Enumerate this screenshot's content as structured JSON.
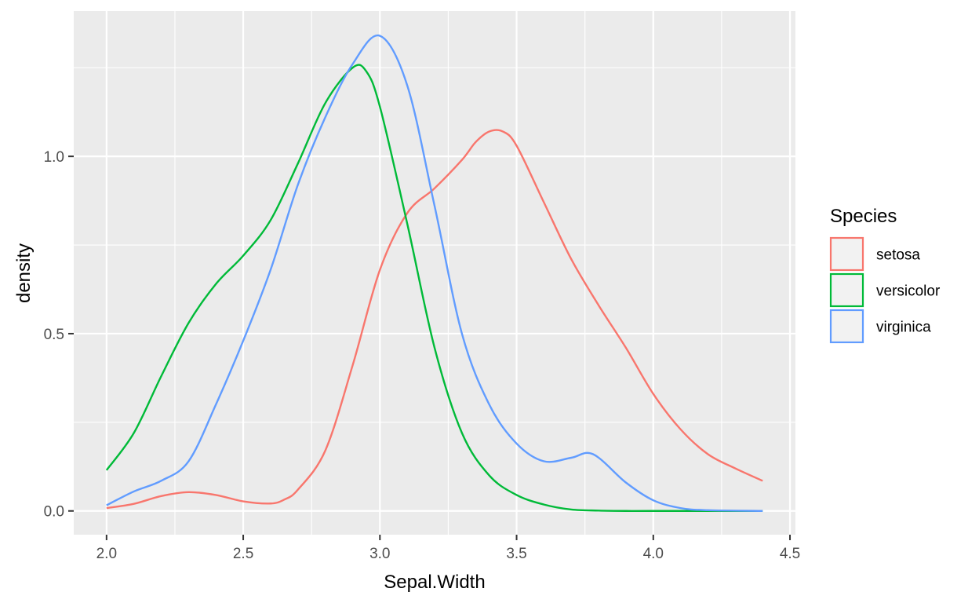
{
  "chart_data": {
    "type": "line",
    "xlabel": "Sepal.Width",
    "ylabel": "density",
    "xlim": [
      1.88,
      4.52
    ],
    "ylim": [
      -0.067,
      1.41
    ],
    "x_ticks": [
      2.0,
      2.5,
      3.0,
      3.5,
      4.0,
      4.5
    ],
    "x_tick_labels": [
      "2.0",
      "2.5",
      "3.0",
      "3.5",
      "4.0",
      "4.5"
    ],
    "y_ticks": [
      0.0,
      0.5,
      1.0
    ],
    "y_tick_labels": [
      "0.0",
      "0.5",
      "1.0"
    ],
    "grid": true,
    "legend": {
      "title": "Species",
      "position": "right"
    },
    "series": [
      {
        "name": "setosa",
        "color": "#F8766D",
        "points": [
          [
            2.0,
            0.008
          ],
          [
            2.1,
            0.02
          ],
          [
            2.2,
            0.042
          ],
          [
            2.3,
            0.053
          ],
          [
            2.4,
            0.045
          ],
          [
            2.5,
            0.027
          ],
          [
            2.6,
            0.021
          ],
          [
            2.65,
            0.032
          ],
          [
            2.7,
            0.06
          ],
          [
            2.8,
            0.17
          ],
          [
            2.9,
            0.41
          ],
          [
            3.0,
            0.68
          ],
          [
            3.1,
            0.84
          ],
          [
            3.2,
            0.91
          ],
          [
            3.3,
            0.99
          ],
          [
            3.35,
            1.04
          ],
          [
            3.4,
            1.07
          ],
          [
            3.45,
            1.07
          ],
          [
            3.5,
            1.03
          ],
          [
            3.6,
            0.87
          ],
          [
            3.7,
            0.71
          ],
          [
            3.8,
            0.58
          ],
          [
            3.9,
            0.46
          ],
          [
            4.0,
            0.33
          ],
          [
            4.1,
            0.23
          ],
          [
            4.2,
            0.16
          ],
          [
            4.3,
            0.12
          ],
          [
            4.4,
            0.085
          ]
        ]
      },
      {
        "name": "versicolor",
        "color": "#00BA38",
        "points": [
          [
            2.0,
            0.115
          ],
          [
            2.1,
            0.22
          ],
          [
            2.2,
            0.38
          ],
          [
            2.3,
            0.53
          ],
          [
            2.4,
            0.64
          ],
          [
            2.5,
            0.72
          ],
          [
            2.6,
            0.82
          ],
          [
            2.7,
            0.98
          ],
          [
            2.8,
            1.15
          ],
          [
            2.9,
            1.25
          ],
          [
            2.95,
            1.24
          ],
          [
            3.0,
            1.14
          ],
          [
            3.1,
            0.81
          ],
          [
            3.2,
            0.46
          ],
          [
            3.3,
            0.22
          ],
          [
            3.4,
            0.1
          ],
          [
            3.5,
            0.045
          ],
          [
            3.6,
            0.018
          ],
          [
            3.7,
            0.004
          ],
          [
            3.8,
            0.001
          ],
          [
            3.9,
            0.0
          ],
          [
            4.0,
            0.0
          ],
          [
            4.4,
            0.0
          ]
        ]
      },
      {
        "name": "virginica",
        "color": "#619CFF",
        "points": [
          [
            2.0,
            0.016
          ],
          [
            2.1,
            0.055
          ],
          [
            2.2,
            0.085
          ],
          [
            2.3,
            0.14
          ],
          [
            2.4,
            0.3
          ],
          [
            2.5,
            0.48
          ],
          [
            2.6,
            0.68
          ],
          [
            2.7,
            0.92
          ],
          [
            2.8,
            1.11
          ],
          [
            2.9,
            1.26
          ],
          [
            3.0,
            1.34
          ],
          [
            3.1,
            1.2
          ],
          [
            3.2,
            0.86
          ],
          [
            3.3,
            0.5
          ],
          [
            3.4,
            0.3
          ],
          [
            3.5,
            0.19
          ],
          [
            3.6,
            0.14
          ],
          [
            3.7,
            0.15
          ],
          [
            3.78,
            0.16
          ],
          [
            3.9,
            0.08
          ],
          [
            4.0,
            0.03
          ],
          [
            4.1,
            0.008
          ],
          [
            4.2,
            0.002
          ],
          [
            4.4,
            0.0
          ]
        ]
      }
    ]
  }
}
